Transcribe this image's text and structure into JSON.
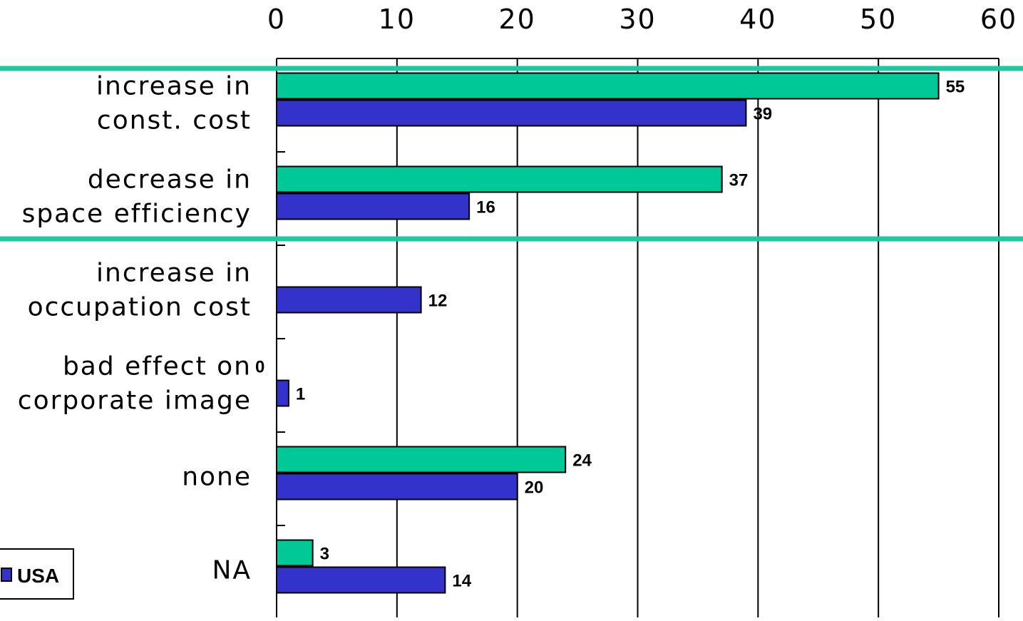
{
  "chart_data": {
    "type": "bar",
    "orientation": "horizontal",
    "x_axis_position": "top",
    "xlim": [
      0,
      60
    ],
    "x_ticks": [
      "0",
      "10",
      "20",
      "30",
      "40",
      "50",
      "60"
    ],
    "categories": [
      [
        "increase in",
        "const. cost"
      ],
      [
        "decrease in",
        "space efficiency"
      ],
      [
        "increase in",
        "occupation cost"
      ],
      [
        "bad effect on",
        "corporate image"
      ],
      [
        "none"
      ],
      [
        "NA"
      ]
    ],
    "series": [
      {
        "name": "",
        "color": "#00C896",
        "values": [
          55,
          37,
          null,
          0,
          24,
          3
        ]
      },
      {
        "name": "USA",
        "color": "#3333CC",
        "values": [
          39,
          16,
          12,
          1,
          20,
          14
        ]
      }
    ],
    "grid": true,
    "highlight_lines_color": "#20C8A0",
    "legend": {
      "position": "bottom-left",
      "visible_entries": [
        "USA"
      ]
    }
  }
}
